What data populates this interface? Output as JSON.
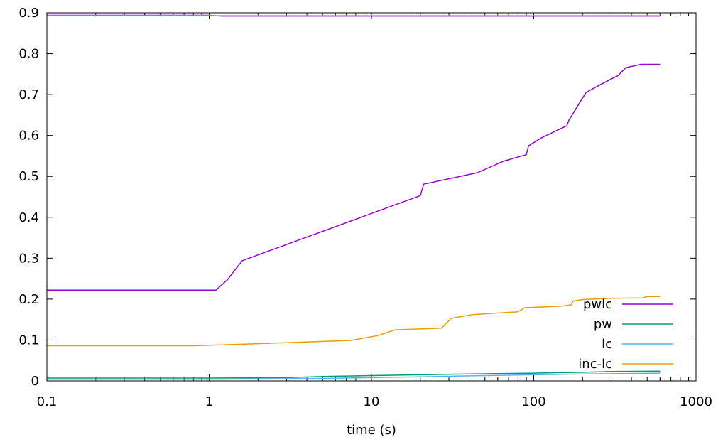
{
  "chart_data": {
    "type": "line",
    "title": "",
    "xlabel": "time (s)",
    "ylabel": "",
    "xscale": "log",
    "xlim": [
      0.1,
      1000
    ],
    "ylim": [
      0,
      0.9
    ],
    "grid": false,
    "legend_position": "bottom-right",
    "x_ticks": [
      {
        "value": 0.1,
        "label": "0.1"
      },
      {
        "value": 1,
        "label": "1"
      },
      {
        "value": 10,
        "label": "10"
      },
      {
        "value": 100,
        "label": "100"
      },
      {
        "value": 1000,
        "label": "1000"
      }
    ],
    "y_ticks": [
      {
        "value": 0,
        "label": "0"
      },
      {
        "value": 0.1,
        "label": "0.1"
      },
      {
        "value": 0.2,
        "label": "0.2"
      },
      {
        "value": 0.3,
        "label": "0.3"
      },
      {
        "value": 0.4,
        "label": "0.4"
      },
      {
        "value": 0.5,
        "label": "0.5"
      },
      {
        "value": 0.6,
        "label": "0.6"
      },
      {
        "value": 0.7,
        "label": "0.7"
      },
      {
        "value": 0.8,
        "label": "0.8"
      },
      {
        "value": 0.9,
        "label": "0.9"
      }
    ],
    "series": [
      {
        "name": "pwlc",
        "color": "#9400d3",
        "points": [
          [
            0.1,
            0.222
          ],
          [
            1.1,
            0.222
          ],
          [
            1.3,
            0.248
          ],
          [
            1.6,
            0.294
          ],
          [
            20,
            0.453
          ],
          [
            21,
            0.481
          ],
          [
            45,
            0.509
          ],
          [
            65,
            0.537
          ],
          [
            90,
            0.553
          ],
          [
            93,
            0.575
          ],
          [
            110,
            0.593
          ],
          [
            160,
            0.624
          ],
          [
            165,
            0.638
          ],
          [
            210,
            0.705
          ],
          [
            240,
            0.718
          ],
          [
            300,
            0.738
          ],
          [
            330,
            0.746
          ],
          [
            370,
            0.766
          ],
          [
            460,
            0.774
          ],
          [
            600,
            0.774
          ]
        ]
      },
      {
        "name": "pw",
        "color": "#009e73",
        "points": [
          [
            0.1,
            0.007
          ],
          [
            1,
            0.007
          ],
          [
            3,
            0.008
          ],
          [
            5,
            0.011
          ],
          [
            10,
            0.013
          ],
          [
            20,
            0.015
          ],
          [
            40,
            0.017
          ],
          [
            100,
            0.019
          ],
          [
            200,
            0.021
          ],
          [
            300,
            0.023
          ],
          [
            600,
            0.024
          ]
        ]
      },
      {
        "name": "lc",
        "color": "#56b4e9",
        "points": [
          [
            0.1,
            0.004
          ],
          [
            1,
            0.004
          ],
          [
            5,
            0.006
          ],
          [
            10,
            0.008
          ],
          [
            20,
            0.01
          ],
          [
            50,
            0.013
          ],
          [
            100,
            0.015
          ],
          [
            200,
            0.017
          ],
          [
            400,
            0.018
          ],
          [
            600,
            0.019
          ]
        ]
      },
      {
        "name": "inc-lc",
        "color": "#e69f00",
        "points": [
          [
            0.1,
            0.086
          ],
          [
            0.8,
            0.086
          ],
          [
            2,
            0.091
          ],
          [
            7.5,
            0.099
          ],
          [
            11,
            0.111
          ],
          [
            14,
            0.125
          ],
          [
            27,
            0.129
          ],
          [
            31,
            0.153
          ],
          [
            42,
            0.162
          ],
          [
            55,
            0.165
          ],
          [
            80,
            0.169
          ],
          [
            88,
            0.179
          ],
          [
            150,
            0.183
          ],
          [
            170,
            0.186
          ],
          [
            175,
            0.195
          ],
          [
            200,
            0.199
          ],
          [
            300,
            0.202
          ],
          [
            470,
            0.203
          ],
          [
            500,
            0.206
          ],
          [
            600,
            0.206
          ]
        ]
      },
      {
        "name": "",
        "color": "#9400d3",
        "points": [
          [
            0.1,
            0.894
          ],
          [
            1,
            0.894
          ],
          [
            1.2,
            0.892
          ],
          [
            600,
            0.892
          ]
        ]
      },
      {
        "name": "",
        "color": "#e69f00",
        "points": [
          [
            0.1,
            0.893
          ],
          [
            600,
            0.893
          ]
        ]
      }
    ]
  }
}
